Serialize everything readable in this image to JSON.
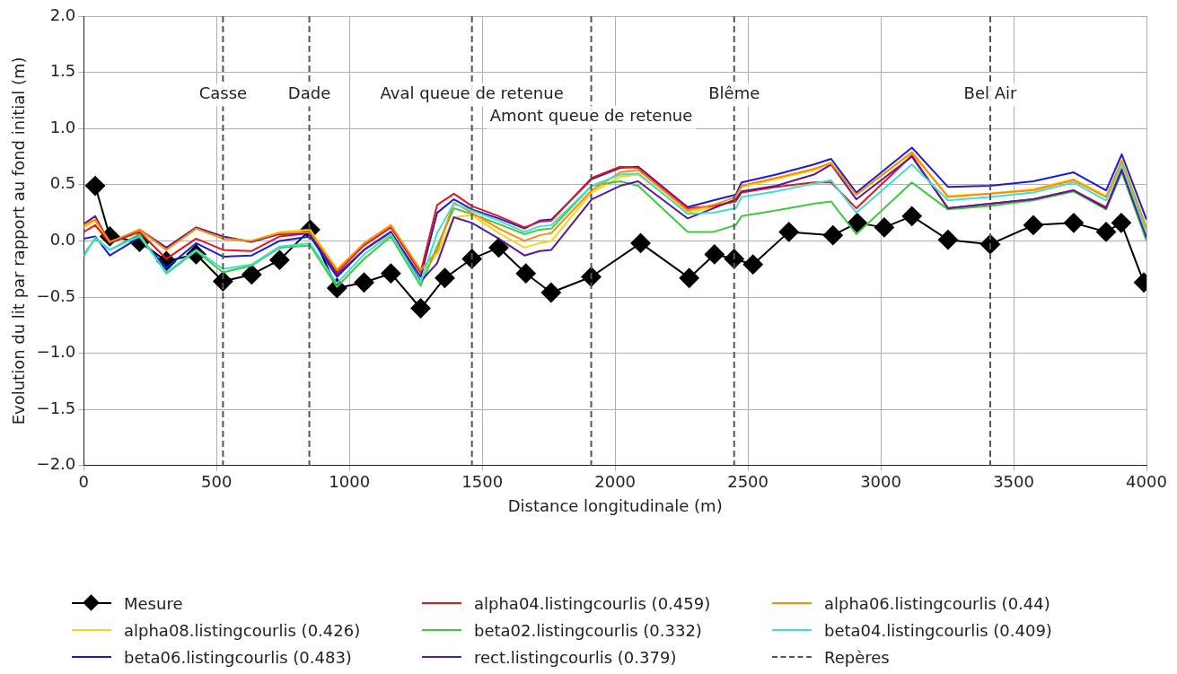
{
  "chart_data": {
    "type": "line",
    "xlabel": "Distance longitudinale (m)",
    "ylabel": "Evolution du lit par rapport au fond initial (m)",
    "xlim": [
      0,
      4000
    ],
    "xticks": [
      0,
      500,
      1000,
      1500,
      2000,
      2500,
      3000,
      3500,
      4000
    ],
    "ylim": [
      -2,
      2
    ],
    "yticks": [
      {
        "value": -2,
        "label": "−2.0"
      },
      {
        "value": -1.5,
        "label": "−1.5"
      },
      {
        "value": -1,
        "label": "−1.0"
      },
      {
        "value": -0.5,
        "label": "−0.5"
      },
      {
        "value": 0,
        "label": "0.0"
      },
      {
        "value": 0.5,
        "label": "0.5"
      },
      {
        "value": 1,
        "label": "1.0"
      },
      {
        "value": 1.5,
        "label": "1.5"
      },
      {
        "value": 2,
        "label": "2.0"
      }
    ],
    "grid": true,
    "legend": "bottom",
    "line_style": "solid",
    "x": [
      0,
      43,
      98,
      210,
      311,
      423,
      524,
      632,
      737,
      852,
      953,
      1055,
      1156,
      1268,
      1330,
      1393,
      1461,
      1562,
      1659,
      1716,
      1760,
      1912,
      2019,
      2087,
      2273,
      2370,
      2454,
      2476,
      2606,
      2748,
      2813,
      2908,
      3117,
      3253,
      3411,
      3574,
      3726,
      3848,
      3907,
      4000
    ],
    "series": [
      {
        "name": "Mesure",
        "color": "#000000",
        "marker": "diamond",
        "x": [
          43,
          98,
          210,
          311,
          423,
          524,
          632,
          737,
          852,
          953,
          1055,
          1156,
          1268,
          1359,
          1461,
          1562,
          1664,
          1759,
          1910,
          2096,
          2279,
          2374,
          2448,
          2519,
          2654,
          2820,
          2911,
          3013,
          3117,
          3253,
          3412,
          3574,
          3726,
          3848,
          3905,
          3990
        ],
        "values": [
          0.49,
          0.04,
          -0.01,
          -0.18,
          -0.12,
          -0.36,
          -0.3,
          -0.17,
          0.1,
          -0.42,
          -0.37,
          -0.29,
          -0.6,
          -0.33,
          -0.16,
          -0.06,
          -0.29,
          -0.46,
          -0.32,
          -0.02,
          -0.33,
          -0.12,
          -0.16,
          -0.21,
          0.08,
          0.05,
          0.16,
          0.12,
          0.22,
          0.01,
          -0.03,
          0.14,
          0.16,
          0.08,
          0.16,
          -0.37
        ]
      },
      {
        "name": "alpha08.listingcourlis (0.426)",
        "color": "#ffd21a",
        "values": [
          0.12,
          0.18,
          -0.01,
          0.09,
          -0.07,
          0.11,
          0.02,
          0.0,
          0.08,
          0.1,
          -0.25,
          -0.03,
          0.13,
          -0.3,
          -0.12,
          0.21,
          0.23,
          0.07,
          -0.06,
          -0.02,
          0.0,
          0.43,
          0.57,
          0.59,
          0.25,
          0.3,
          0.37,
          0.48,
          0.55,
          0.63,
          0.7,
          0.42,
          0.78,
          0.4,
          0.42,
          0.46,
          0.55,
          0.4,
          0.72,
          0.12
        ]
      },
      {
        "name": "beta06.listingcourlis (0.483)",
        "color": "#1a1adf",
        "values": [
          0.02,
          0.04,
          -0.13,
          0.03,
          -0.24,
          -0.02,
          -0.14,
          -0.13,
          0.0,
          0.04,
          -0.32,
          -0.08,
          0.08,
          -0.32,
          0.25,
          0.37,
          0.28,
          0.2,
          0.11,
          0.18,
          0.19,
          0.55,
          0.65,
          0.66,
          0.3,
          0.36,
          0.41,
          0.52,
          0.59,
          0.68,
          0.73,
          0.43,
          0.83,
          0.48,
          0.49,
          0.53,
          0.61,
          0.45,
          0.77,
          0.19
        ]
      },
      {
        "name": "alpha04.listingcourlis (0.459)",
        "color": "#e8141a",
        "values": [
          0.08,
          0.14,
          -0.02,
          0.08,
          -0.16,
          0.02,
          -0.08,
          -0.09,
          0.04,
          0.07,
          -0.28,
          -0.04,
          0.12,
          -0.28,
          0.32,
          0.42,
          0.31,
          0.22,
          0.12,
          0.17,
          0.18,
          0.56,
          0.66,
          0.65,
          0.29,
          0.31,
          0.35,
          0.43,
          0.48,
          0.52,
          0.52,
          0.29,
          0.76,
          0.29,
          0.33,
          0.37,
          0.45,
          0.3,
          0.64,
          0.03
        ]
      },
      {
        "name": "beta02.listingcourlis (0.332)",
        "color": "#3ec93e",
        "values": [
          -0.12,
          0.02,
          -0.08,
          0.06,
          -0.29,
          -0.09,
          -0.28,
          -0.22,
          -0.06,
          -0.04,
          -0.41,
          -0.16,
          0.04,
          -0.4,
          -0.05,
          0.29,
          0.24,
          0.15,
          0.06,
          0.1,
          0.11,
          0.49,
          0.53,
          0.49,
          0.08,
          0.08,
          0.14,
          0.22,
          0.27,
          0.33,
          0.35,
          0.06,
          0.52,
          0.28,
          0.31,
          0.36,
          0.44,
          0.28,
          0.61,
          0.0
        ]
      },
      {
        "name": "rect.listingcourlis (0.379)",
        "color": "#5a1a96",
        "values": [
          0.15,
          0.22,
          -0.02,
          0.1,
          -0.06,
          0.12,
          0.04,
          -0.01,
          0.06,
          0.07,
          -0.3,
          -0.08,
          0.08,
          -0.36,
          -0.2,
          0.21,
          0.16,
          0.02,
          -0.13,
          -0.09,
          -0.08,
          0.37,
          0.49,
          0.53,
          0.2,
          0.29,
          0.37,
          0.44,
          0.49,
          0.59,
          0.68,
          0.37,
          0.75,
          0.29,
          0.33,
          0.37,
          0.45,
          0.29,
          0.63,
          0.03
        ]
      },
      {
        "name": "alpha06.listingcourlis (0.44)",
        "color": "#ff8c00",
        "values": [
          0.14,
          0.19,
          -0.01,
          0.1,
          -0.08,
          0.11,
          0.02,
          0.0,
          0.07,
          0.08,
          -0.26,
          -0.02,
          0.14,
          -0.26,
          -0.09,
          0.34,
          0.25,
          0.11,
          0.0,
          0.05,
          0.07,
          0.45,
          0.61,
          0.63,
          0.27,
          0.32,
          0.39,
          0.49,
          0.56,
          0.64,
          0.69,
          0.41,
          0.79,
          0.39,
          0.42,
          0.45,
          0.54,
          0.39,
          0.71,
          0.11
        ]
      },
      {
        "name": "beta04.listingcourlis (0.409)",
        "color": "#40e0d0",
        "values": [
          -0.14,
          0.03,
          -0.08,
          0.04,
          -0.28,
          -0.08,
          -0.25,
          -0.21,
          -0.05,
          -0.02,
          -0.38,
          -0.12,
          0.06,
          -0.37,
          0.07,
          0.33,
          0.27,
          0.18,
          0.08,
          0.13,
          0.14,
          0.49,
          0.59,
          0.6,
          0.24,
          0.25,
          0.29,
          0.39,
          0.44,
          0.51,
          0.54,
          0.25,
          0.68,
          0.36,
          0.39,
          0.43,
          0.52,
          0.36,
          0.68,
          0.07
        ]
      }
    ],
    "ref_lines": [
      {
        "axis": "x",
        "value": 524,
        "label": "Casse",
        "color": "#555555",
        "line_style": "dashed"
      },
      {
        "axis": "x",
        "value": 849,
        "label": "Dade",
        "color": "#555555",
        "line_style": "dashed"
      },
      {
        "axis": "x",
        "value": 1461,
        "label": "Aval queue de retenue",
        "color": "#555555",
        "line_style": "dashed"
      },
      {
        "axis": "x",
        "value": 1910,
        "label": "Amont queue de retenue",
        "color": "#555555",
        "line_style": "dashed"
      },
      {
        "axis": "x",
        "value": 2448,
        "label": "Blême",
        "color": "#555555",
        "line_style": "dashed"
      },
      {
        "axis": "x",
        "value": 3412,
        "label": "Bel Air",
        "color": "#555555",
        "line_style": "dashed"
      }
    ],
    "annotations": [
      "Repères"
    ]
  }
}
